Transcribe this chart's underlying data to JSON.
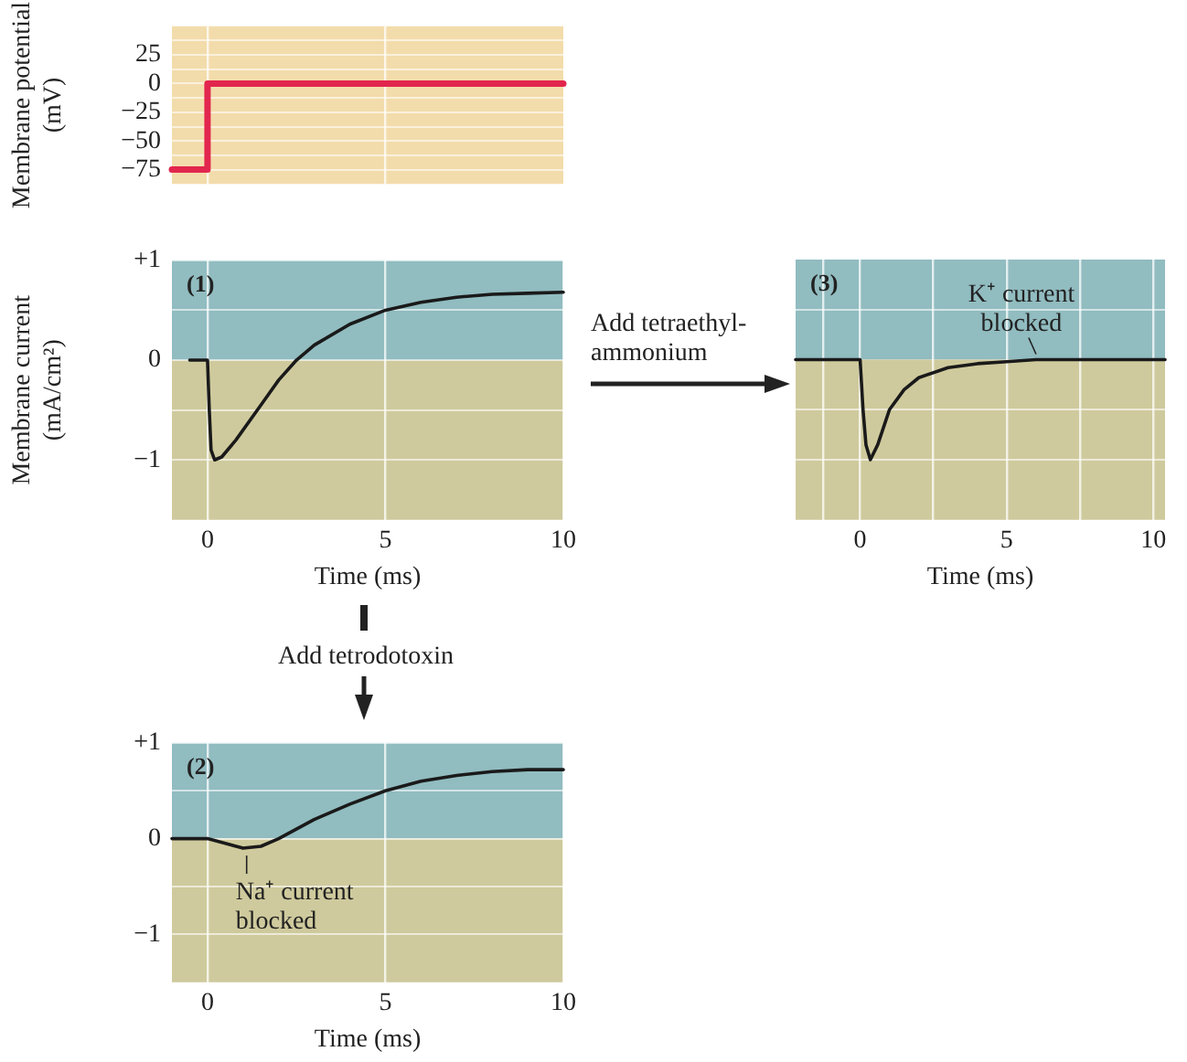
{
  "chart_data": [
    {
      "type": "step",
      "ylabel": "Membrane potential (mV)",
      "x": [
        -1,
        0,
        10
      ],
      "series": [
        {
          "color": "#e2264e",
          "values": [
            -75,
            0,
            0
          ]
        }
      ],
      "xlim": [
        -1,
        10
      ],
      "xticks": [
        {
          "value": 0,
          "label": null
        },
        {
          "value": 5,
          "label": null
        }
      ],
      "ylim": [
        -87.5,
        50
      ],
      "yticks": [
        {
          "value": 25,
          "label": "25"
        },
        {
          "value": 12.5,
          "label": null
        },
        {
          "value": 0,
          "label": "0"
        },
        {
          "value": -12.5,
          "label": null
        },
        {
          "value": -25,
          "label": "−25"
        },
        {
          "value": -37.5,
          "label": null
        },
        {
          "value": -50,
          "label": "−50"
        },
        {
          "value": -62.5,
          "label": null
        },
        {
          "value": -75,
          "label": "−75"
        },
        {
          "value": 37.5,
          "label": null
        }
      ],
      "tick_labels": "y",
      "grid": true,
      "legend": false,
      "bands": [
        {
          "axis": "y",
          "from": -87.5,
          "to": 50,
          "color": "#f3dcab"
        }
      ]
    },
    {
      "type": "line",
      "xlabel": "Time (ms)",
      "ylabel": "Membrane current (mA/cm²)",
      "x": [
        -0.5,
        0,
        0.05,
        0.1,
        0.2,
        0.4,
        0.8,
        1.5,
        2,
        2.5,
        3,
        4,
        5,
        6,
        7,
        8,
        9,
        10
      ],
      "series": [
        {
          "color": "#1a1a1a",
          "values": [
            0,
            0,
            -0.5,
            -0.9,
            -1.0,
            -0.97,
            -0.8,
            -0.45,
            -0.2,
            0,
            0.15,
            0.36,
            0.5,
            0.58,
            0.63,
            0.66,
            0.67,
            0.68
          ]
        }
      ],
      "xlim": [
        -1,
        10
      ],
      "xticks": [
        0,
        5,
        10
      ],
      "ylim": [
        -1.6,
        1
      ],
      "yticks": [
        {
          "value": 1,
          "label": "+1"
        },
        {
          "value": 0.5,
          "label": null
        },
        {
          "value": 0,
          "label": "0"
        },
        {
          "value": -0.5,
          "label": null
        },
        {
          "value": -1,
          "label": "−1"
        }
      ],
      "grid": true,
      "legend": false,
      "annotations": [
        "(1)"
      ],
      "bands": [
        {
          "axis": "y",
          "from": 0,
          "to": 1,
          "color": "#91bcc0"
        },
        {
          "axis": "y",
          "from": -1.6,
          "to": 0,
          "color": "#cfca9d"
        }
      ]
    },
    {
      "type": "line",
      "xlabel": "Time (ms)",
      "x": [
        -2.2,
        0,
        0.1,
        0.2,
        0.35,
        0.6,
        1,
        1.5,
        2,
        3,
        4,
        5,
        6,
        10.4
      ],
      "series": [
        {
          "color": "#1a1a1a",
          "values": [
            0,
            0,
            -0.5,
            -0.85,
            -1.0,
            -0.85,
            -0.5,
            -0.3,
            -0.18,
            -0.08,
            -0.04,
            -0.02,
            0,
            0
          ]
        }
      ],
      "xlim": [
        -2.2,
        10.4
      ],
      "xticks": [
        {
          "value": -1.25,
          "label": null
        },
        {
          "value": 0,
          "label": "0"
        },
        {
          "value": 2.5,
          "label": null
        },
        {
          "value": 5,
          "label": "5"
        },
        {
          "value": 7.5,
          "label": null
        },
        {
          "value": 10,
          "label": "10"
        }
      ],
      "ylim": [
        -1.6,
        1
      ],
      "yticks": [
        {
          "value": 0.5,
          "label": null
        },
        {
          "value": -0.5,
          "label": null
        },
        {
          "value": -1,
          "label": null
        }
      ],
      "tick_labels": "x",
      "grid": true,
      "legend": false,
      "annotations": [
        "(3)",
        "Add tetraethyl-ammonium",
        {
          "text": "K⁺ current blocked",
          "x": 6,
          "y": 0
        }
      ],
      "bands": [
        {
          "axis": "y",
          "from": 0,
          "to": 1,
          "color": "#91bcc0"
        },
        {
          "axis": "y",
          "from": -1.6,
          "to": 0,
          "color": "#cfca9d"
        }
      ]
    },
    {
      "type": "line",
      "xlabel": "Time (ms)",
      "x": [
        -1,
        0,
        0.5,
        1,
        1.5,
        2,
        3,
        4,
        5,
        6,
        7,
        8,
        9,
        10
      ],
      "series": [
        {
          "color": "#1a1a1a",
          "values": [
            0,
            0,
            -0.05,
            -0.1,
            -0.08,
            0,
            0.2,
            0.36,
            0.5,
            0.6,
            0.66,
            0.7,
            0.72,
            0.72
          ]
        }
      ],
      "xlim": [
        -1,
        10
      ],
      "xticks": [
        0,
        5,
        10
      ],
      "ylim": [
        -1.5,
        1
      ],
      "yticks": [
        {
          "value": 1,
          "label": "+1"
        },
        {
          "value": 0.5,
          "label": null
        },
        {
          "value": 0,
          "label": "0"
        },
        {
          "value": -0.5,
          "label": null
        },
        {
          "value": -1,
          "label": "−1"
        }
      ],
      "grid": true,
      "legend": false,
      "annotations": [
        "(2)",
        "Add tetrodotoxin",
        {
          "text": "Na⁺ current blocked",
          "x": 1.1,
          "y": -0.1
        }
      ],
      "bands": [
        {
          "axis": "y",
          "from": 0,
          "to": 1,
          "color": "#91bcc0"
        },
        {
          "axis": "y",
          "from": -1.5,
          "to": 0,
          "color": "#cfca9d"
        }
      ]
    }
  ]
}
